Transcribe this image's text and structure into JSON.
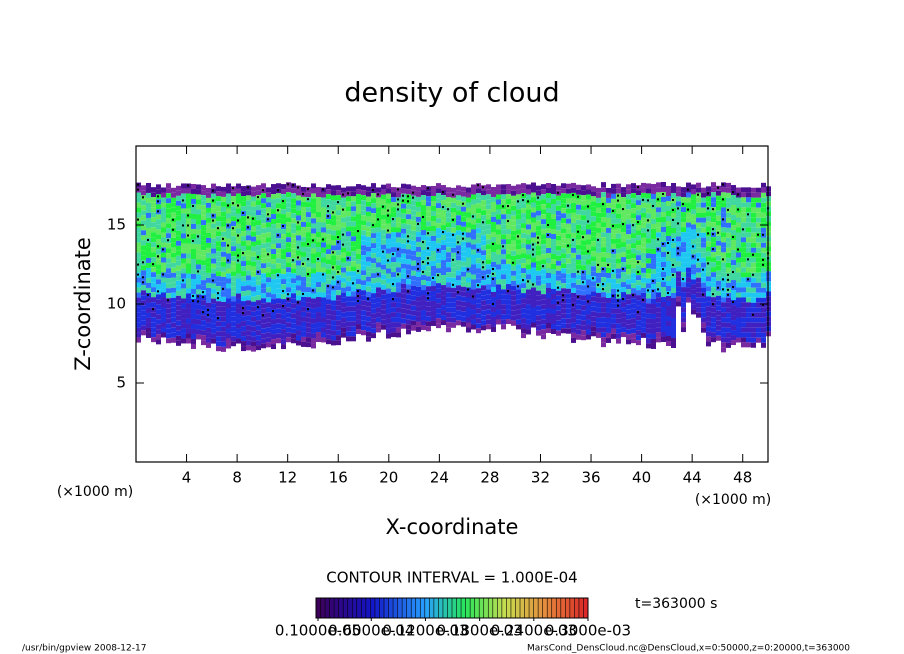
{
  "chart_data": {
    "type": "contour",
    "title": "density of cloud",
    "x_label": "X-coordinate",
    "y_label": "Z-coordinate",
    "x_unit_left": "(×1000 m)",
    "x_unit_right": "(×1000 m)",
    "xlim": [
      0,
      50
    ],
    "xticks": [
      4,
      8,
      12,
      16,
      20,
      24,
      28,
      32,
      36,
      40,
      44,
      48
    ],
    "ylim": [
      0,
      20
    ],
    "yticks": [
      5,
      10,
      15
    ],
    "contour_interval": "CONTOUR INTERVAL = 1.000E-04",
    "time_label": "t=363000 s",
    "colorbar_ticks": [
      {
        "value": 1e-06,
        "label": "0.1000e-05"
      },
      {
        "value": 6e-05,
        "label": "0.6000e-04"
      },
      {
        "value": 0.00012,
        "label": "0.1200e-03"
      },
      {
        "value": 0.00018,
        "label": "0.1800e-03"
      },
      {
        "value": 0.00024,
        "label": "0.2400e-03"
      },
      {
        "value": 0.0003,
        "label": "0.3000e-03"
      }
    ],
    "footer_left": "/usr/bin/gpview  2008-12-17",
    "footer_right": "MarsCond_DensCloud.nc@DensCloud,x=0:50000,z=0:20000,t=363000"
  }
}
